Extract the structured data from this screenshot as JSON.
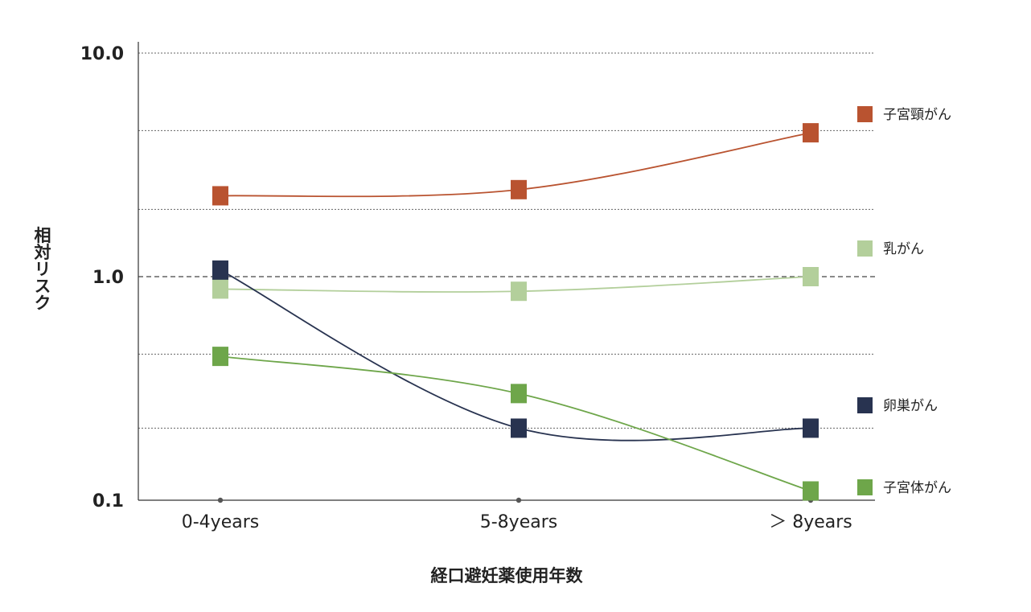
{
  "chart_data": {
    "type": "line",
    "ylabel": "相対リスク",
    "xlabel": "経口避妊薬使用年数",
    "y_scale": "log",
    "ylim": [
      0.1,
      10.0
    ],
    "yticks": [
      {
        "value": 0.1,
        "label": "0.1"
      },
      {
        "value": 1.0,
        "label": "1.0"
      },
      {
        "value": 10.0,
        "label": "10.0"
      }
    ],
    "grid": true,
    "reference_line": 1.0,
    "categories": [
      "0-4years",
      "5-8years",
      "＞ 8years"
    ],
    "legend_position": "right",
    "series": [
      {
        "name": "子宮頸がん",
        "color": "#b95330",
        "values": [
          2.3,
          2.45,
          4.4
        ]
      },
      {
        "name": "乳がん",
        "color": "#b3cf9b",
        "values": [
          0.88,
          0.86,
          1.0
        ]
      },
      {
        "name": "卵巣がん",
        "color": "#283350",
        "values": [
          1.07,
          0.21,
          0.21
        ]
      },
      {
        "name": "子宮体がん",
        "color": "#6ea64a",
        "values": [
          0.44,
          0.3,
          0.11
        ]
      }
    ]
  }
}
